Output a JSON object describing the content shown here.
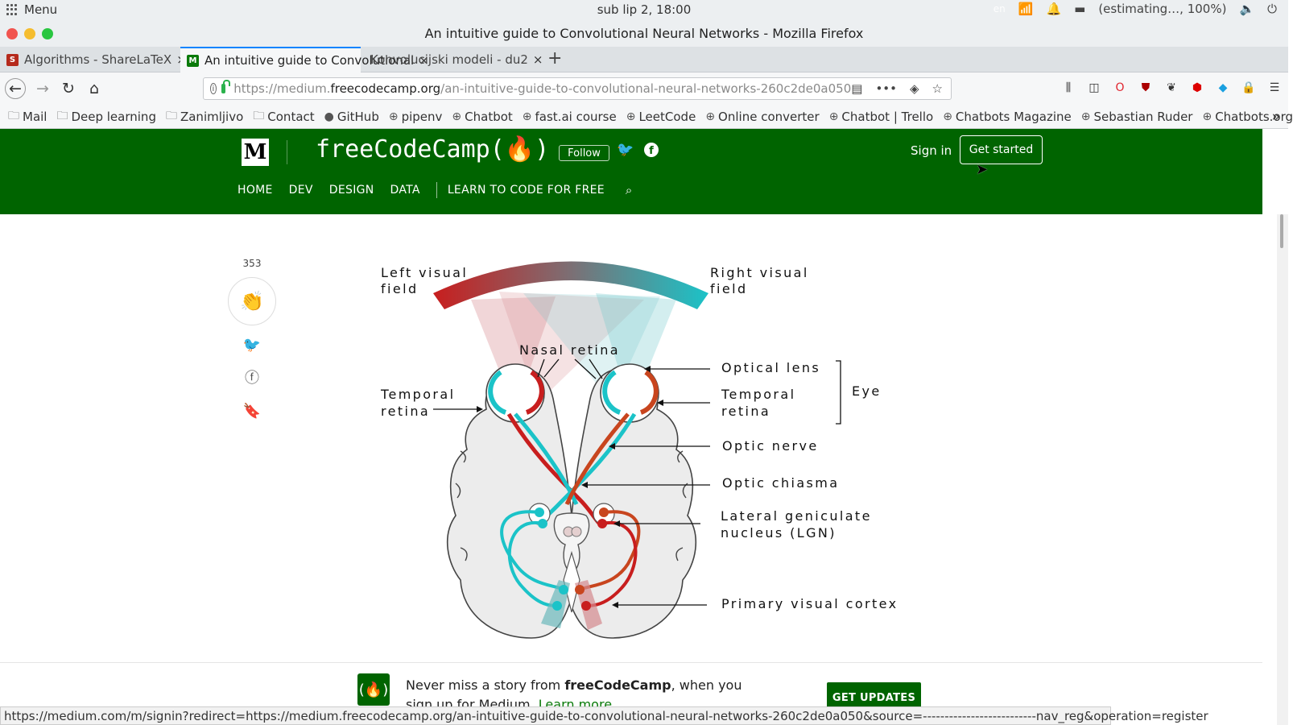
{
  "os": {
    "menu_label": "Menu",
    "clock": "sub lip  2, 18:00",
    "lang": "en",
    "battery": "(estimating…, 100%)"
  },
  "window": {
    "title": "An intuitive guide to Convolutional Neural Networks - Mozilla Firefox"
  },
  "tabs": [
    {
      "label": "Algorithms - ShareLaTeX",
      "favicon": "S",
      "color": "#b52a1c"
    },
    {
      "label": "An intuitive guide to Convolutional",
      "favicon": "M",
      "color": "#0a7a0a"
    },
    {
      "label": "Konvolucijski modeli - du2",
      "favicon": "",
      "color": ""
    }
  ],
  "url": {
    "prefix": "https://medium.",
    "domain": "freecodecamp.org",
    "path": "/an-intuitive-guide-to-convolutional-neural-networks-260c2de0a050"
  },
  "bookmarks": [
    {
      "label": "Mail",
      "icon": "folder-icon"
    },
    {
      "label": "Deep learning",
      "icon": "folder-icon"
    },
    {
      "label": "Zanimljivo",
      "icon": "folder-icon"
    },
    {
      "label": "Contact",
      "icon": "folder-icon"
    },
    {
      "label": "GitHub",
      "icon": "github-icon"
    },
    {
      "label": "pipenv",
      "icon": "globe-icon"
    },
    {
      "label": "Chatbot",
      "icon": "globe-icon"
    },
    {
      "label": "fast.ai course",
      "icon": "globe-icon"
    },
    {
      "label": "LeetCode",
      "icon": "globe-icon"
    },
    {
      "label": "Online converter",
      "icon": "globe-icon"
    },
    {
      "label": "Chatbot | Trello",
      "icon": "globe-icon"
    },
    {
      "label": "Chatbots Magazine",
      "icon": "globe-icon"
    },
    {
      "label": "Sebastian Ruder",
      "icon": "globe-icon"
    },
    {
      "label": "Chatbots.org",
      "icon": "globe-icon"
    }
  ],
  "site": {
    "logo": "M",
    "publication": "freeCodeCamp(🔥)",
    "follow": "Follow",
    "sign_in": "Sign in",
    "get_started": "Get started",
    "nav": [
      "HOME",
      "DEV",
      "DESIGN",
      "DATA",
      "LEARN TO CODE FOR FREE"
    ],
    "brand_color": "#006400"
  },
  "rail": {
    "claps": "353"
  },
  "diagram": {
    "left_visual_field": [
      "Left visual",
      "field"
    ],
    "right_visual_field": [
      "Right visual",
      "field"
    ],
    "nasal_retina": "Nasal retina",
    "temporal_retina_left": [
      "Temporal",
      "retina"
    ],
    "temporal_retina_right": [
      "Temporal",
      "retina"
    ],
    "optical_lens": "Optical lens",
    "eye": "Eye",
    "optic_nerve": "Optic nerve",
    "optic_chiasma": "Optic chiasma",
    "lgn": [
      "Lateral geniculate",
      "nucleus (LGN)"
    ],
    "primary_visual_cortex": "Primary visual cortex",
    "colors": {
      "red": "#c81e1e",
      "cyan": "#1bc3c8"
    }
  },
  "banner": {
    "text_before": "Never miss a story from ",
    "brand": "freeCodeCamp",
    "text_after": ", when you sign up for Medium. ",
    "learn_more": "Learn more",
    "cta": "GET UPDATES"
  },
  "status_link": "https://medium.com/m/signin?redirect=https://medium.freecodecamp.org/an-intuitive-guide-to-convolutional-neural-networks-260c2de0a050&source=--------------------------nav_reg&operation=register"
}
